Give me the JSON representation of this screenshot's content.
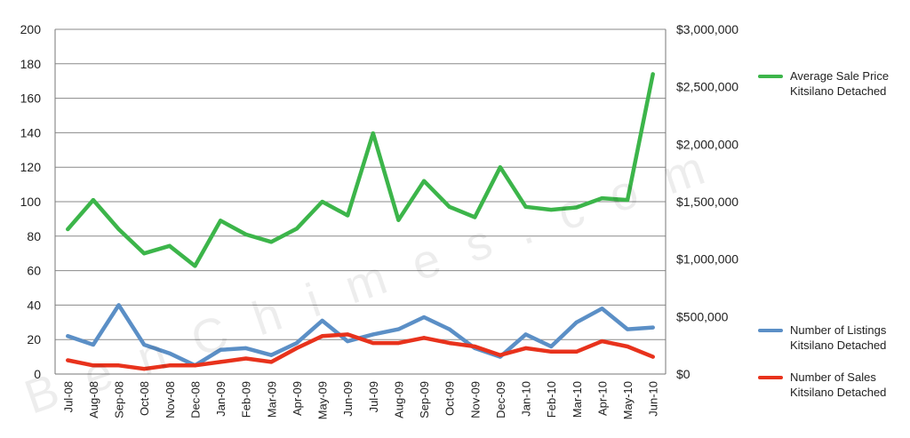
{
  "chart_data": {
    "type": "line",
    "categories": [
      "Jul-08",
      "Aug-08",
      "Sep-08",
      "Oct-08",
      "Nov-08",
      "Dec-08",
      "Jan-09",
      "Feb-09",
      "Mar-09",
      "Apr-09",
      "May-09",
      "Jun-09",
      "Jul-09",
      "Aug-09",
      "Sep-09",
      "Oct-09",
      "Nov-09",
      "Dec-09",
      "Jan-10",
      "Feb-10",
      "Mar-10",
      "Apr-10",
      "May-10",
      "Jun-10"
    ],
    "y_left": {
      "min": 0,
      "max": 200,
      "ticks": [
        "0",
        "20",
        "40",
        "60",
        "80",
        "100",
        "120",
        "140",
        "160",
        "180",
        "200"
      ]
    },
    "y_right": {
      "min": 0,
      "max": 3000000,
      "ticks": [
        "$0",
        "$500,000",
        "$1,000,000",
        "$1,500,000",
        "$2,000,000",
        "$2,500,000",
        "$3,000,000"
      ]
    },
    "grid": "horizontal",
    "legend_position": "right",
    "series": [
      {
        "name_lines": [
          "Average Sale Price",
          "Kitsilano Detached"
        ],
        "axis": "right",
        "color": "#3cb54a",
        "values": [
          1260000,
          1515000,
          1260000,
          1050000,
          1115000,
          940000,
          1335000,
          1215000,
          1150000,
          1265000,
          1500000,
          1380000,
          2095000,
          1340000,
          1680000,
          1455000,
          1365000,
          1800000,
          1455000,
          1430000,
          1450000,
          1530000,
          1515000,
          2610000
        ]
      },
      {
        "name_lines": [
          "Number of Listings",
          "Kitsilano Detached"
        ],
        "axis": "left",
        "color": "#5b8fc6",
        "values": [
          22,
          17,
          40,
          17,
          12,
          5,
          14,
          15,
          11,
          18,
          31,
          19,
          23,
          26,
          33,
          26,
          15,
          10,
          23,
          16,
          30,
          38,
          26,
          27
        ]
      },
      {
        "name_lines": [
          "Number of Sales",
          "Kitsilano Detached"
        ],
        "axis": "left",
        "color": "#e8321c",
        "values": [
          8,
          5,
          5,
          3,
          5,
          5,
          7,
          9,
          7,
          15,
          22,
          23,
          18,
          18,
          21,
          18,
          16,
          11,
          15,
          13,
          13,
          19,
          16,
          10
        ]
      }
    ]
  },
  "watermark": "BenChimes.com"
}
